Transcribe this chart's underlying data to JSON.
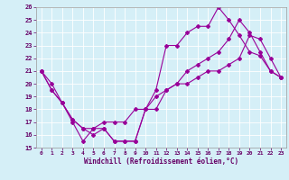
{
  "xlabel": "Windchill (Refroidissement éolien,°C)",
  "line_color": "#990099",
  "bg_color": "#d5eff7",
  "grid_color": "#ffffff",
  "xlim": [
    -0.5,
    23.5
  ],
  "ylim": [
    15,
    26
  ],
  "xticks": [
    0,
    1,
    2,
    3,
    4,
    5,
    6,
    7,
    8,
    9,
    10,
    11,
    12,
    13,
    14,
    15,
    16,
    17,
    18,
    19,
    20,
    21,
    22,
    23
  ],
  "yticks": [
    15,
    16,
    17,
    18,
    19,
    20,
    21,
    22,
    23,
    24,
    25,
    26
  ],
  "series": [
    {
      "x": [
        0,
        1,
        2,
        3,
        4,
        5,
        6,
        7,
        8,
        9,
        10,
        11,
        12,
        13,
        14,
        15,
        16,
        17,
        18,
        19,
        20,
        21,
        22,
        23
      ],
      "y": [
        21,
        20,
        18.5,
        17,
        15.5,
        16.5,
        16.5,
        15.5,
        15.5,
        15.5,
        18,
        19.5,
        23,
        23,
        24,
        24.5,
        24.5,
        26,
        25,
        23.8,
        22.5,
        22.2,
        21,
        20.5
      ]
    },
    {
      "x": [
        0,
        1,
        2,
        3,
        4,
        5,
        6,
        7,
        8,
        9,
        10,
        11,
        12,
        13,
        14,
        15,
        16,
        17,
        18,
        19,
        20,
        21,
        22,
        23
      ],
      "y": [
        21,
        19.5,
        18.5,
        17.2,
        16.5,
        16.5,
        17,
        17,
        17,
        18,
        18,
        19,
        19.5,
        20,
        21,
        21.5,
        22,
        22.5,
        23.5,
        25,
        24,
        22.5,
        21,
        20.5
      ]
    },
    {
      "x": [
        0,
        1,
        2,
        3,
        4,
        5,
        6,
        7,
        8,
        9,
        10,
        11,
        12,
        13,
        14,
        15,
        16,
        17,
        18,
        19,
        20,
        21,
        22,
        23
      ],
      "y": [
        21,
        19.5,
        18.5,
        17.2,
        16.5,
        16,
        16.5,
        15.5,
        15.5,
        15.5,
        18,
        18,
        19.5,
        20,
        20,
        20.5,
        21,
        21,
        21.5,
        22,
        23.8,
        23.5,
        22,
        20.5
      ]
    }
  ]
}
